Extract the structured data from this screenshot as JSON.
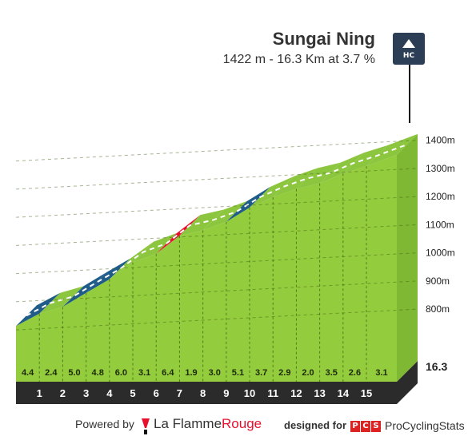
{
  "header": {
    "title": "Sungai Ning",
    "subtitle": "1422 m - 16.3 Km at 3.7 %",
    "category_badge": "HC",
    "badge_icon": "mountain-icon"
  },
  "footer": {
    "powered_label": "Powered by",
    "lfr_brand_main": "La Flamme",
    "lfr_brand_accent": "Rouge",
    "designed_label": "designed for",
    "pcs_letters": [
      "P",
      "C",
      "S"
    ],
    "pcs_brand": "ProCyclingStats"
  },
  "colors": {
    "grade_low": "#8cc63f",
    "grade_mid": "#1f5c8a",
    "grade_high": "#e8112d",
    "base": "#2b2b2b",
    "start_block": "#a89f90",
    "accent_red": "#e8112d"
  },
  "chart_data": {
    "type": "area",
    "title": "Sungai Ning",
    "x_unit": "km",
    "y_unit": "m",
    "total_distance_km": 16.3,
    "total_distance_label": "16.3",
    "summit_elevation_m": 1422,
    "ylim": [
      650,
      1450
    ],
    "y_ticks": [
      800,
      900,
      1000,
      1100,
      1200,
      1300,
      1400
    ],
    "y_tick_labels": [
      "800m",
      "900m",
      "1000m",
      "1100m",
      "1200m",
      "1300m",
      "1400m"
    ],
    "km_markers": [
      "1",
      "2",
      "3",
      "4",
      "5",
      "6",
      "7",
      "8",
      "9",
      "10",
      "11",
      "12",
      "13",
      "14",
      "15"
    ],
    "segments": [
      {
        "km_start": 0,
        "km_end": 1,
        "gradient": 4.4,
        "label": "4.4"
      },
      {
        "km_start": 1,
        "km_end": 2,
        "gradient": 2.4,
        "label": "2.4"
      },
      {
        "km_start": 2,
        "km_end": 3,
        "gradient": 5.0,
        "label": "5.0"
      },
      {
        "km_start": 3,
        "km_end": 4,
        "gradient": 4.8,
        "label": "4.8"
      },
      {
        "km_start": 4,
        "km_end": 5,
        "gradient": 6.0,
        "label": "6.0"
      },
      {
        "km_start": 5,
        "km_end": 6,
        "gradient": 3.1,
        "label": "3.1"
      },
      {
        "km_start": 6,
        "km_end": 7,
        "gradient": 6.4,
        "label": "6.4"
      },
      {
        "km_start": 7,
        "km_end": 8,
        "gradient": 1.9,
        "label": "1.9"
      },
      {
        "km_start": 8,
        "km_end": 9,
        "gradient": 3.0,
        "label": "3.0"
      },
      {
        "km_start": 9,
        "km_end": 10,
        "gradient": 5.1,
        "label": "5.1"
      },
      {
        "km_start": 10,
        "km_end": 11,
        "gradient": 3.7,
        "label": "3.7"
      },
      {
        "km_start": 11,
        "km_end": 12,
        "gradient": 2.9,
        "label": "2.9"
      },
      {
        "km_start": 12,
        "km_end": 13,
        "gradient": 2.0,
        "label": "2.0"
      },
      {
        "km_start": 13,
        "km_end": 14,
        "gradient": 3.5,
        "label": "3.5"
      },
      {
        "km_start": 14,
        "km_end": 15,
        "gradient": 2.6,
        "label": "2.6"
      },
      {
        "km_start": 15,
        "km_end": 16.3,
        "gradient": 3.1,
        "label": "3.1"
      }
    ],
    "segment_colors_by_km": [
      "mid",
      "low",
      "mid",
      "mid",
      "low",
      "low",
      "high",
      "low",
      "low",
      "mid",
      "low",
      "low",
      "low",
      "low",
      "low",
      "low"
    ],
    "grid": true,
    "legend": "none"
  }
}
